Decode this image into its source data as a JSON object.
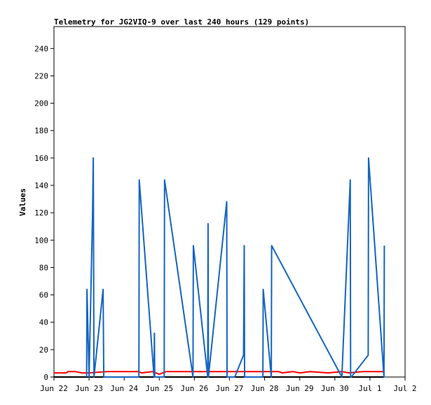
{
  "chart_data": {
    "type": "line",
    "title": "Telemetry for JG2VIQ-9 over last 240 hours (129 points)",
    "xlabel": "",
    "ylabel": "Values",
    "x_ticks": [
      "Jun 22",
      "Jun 23",
      "Jun 24",
      "Jun 25",
      "Jun 26",
      "Jun 27",
      "Jun 28",
      "Jun 29",
      "Jun 30",
      "Jul 1",
      "Jul 2"
    ],
    "x_range_days": [
      0,
      10
    ],
    "y_ticks": [
      0,
      20,
      40,
      60,
      80,
      100,
      120,
      140,
      160,
      180,
      200,
      220,
      240
    ],
    "ylim": [
      0,
      256
    ],
    "grid": false,
    "colors": {
      "series_blue": "#1565c0",
      "series_red": "#ff0000",
      "series_black": "#000000"
    },
    "series": [
      {
        "name": "",
        "color": "#1565c0",
        "x": [
          0.93,
          0.94,
          1.0,
          1.1,
          1.12,
          1.13,
          1.14,
          1.14,
          1.4,
          1.42,
          2.42,
          2.43,
          2.85,
          2.86,
          2.87,
          3.14,
          3.15,
          3.96,
          3.97,
          4.38,
          4.39,
          4.4,
          4.92,
          4.93,
          5.14,
          5.15,
          5.4,
          5.42,
          5.43,
          5.95,
          5.96,
          6.19,
          6.2,
          8.2,
          8.44,
          8.45,
          8.47,
          8.95,
          8.96,
          9.4,
          9.41
        ],
        "values": [
          0,
          64,
          0,
          120,
          160,
          80,
          0,
          0,
          64,
          0,
          0,
          144,
          0,
          32,
          0,
          0,
          144,
          0,
          96,
          0,
          112,
          0,
          128,
          0,
          0,
          0,
          16,
          96,
          0,
          0,
          64,
          0,
          96,
          0,
          144,
          0,
          0,
          16,
          160,
          0,
          96
        ]
      },
      {
        "name": "",
        "color": "#ff0000",
        "x": [
          0,
          0.35,
          0.4,
          0.6,
          0.8,
          1.0,
          1.5,
          2.0,
          2.4,
          2.5,
          2.8,
          2.9,
          3.0,
          3.1,
          3.2,
          4.0,
          5.0,
          6.0,
          6.4,
          6.5,
          6.8,
          7.0,
          7.3,
          7.8,
          8.2,
          8.4,
          8.8,
          9.0,
          9.4
        ],
        "values": [
          3,
          3,
          4,
          4,
          3,
          3,
          4,
          4,
          4,
          3,
          4,
          3,
          2,
          3,
          4,
          4,
          4,
          4,
          4,
          3,
          4,
          3,
          4,
          3,
          4,
          3,
          4,
          4,
          4
        ]
      },
      {
        "name": "",
        "color": "#000000",
        "x": [
          0,
          9.4
        ],
        "values": [
          0,
          0
        ]
      }
    ]
  }
}
